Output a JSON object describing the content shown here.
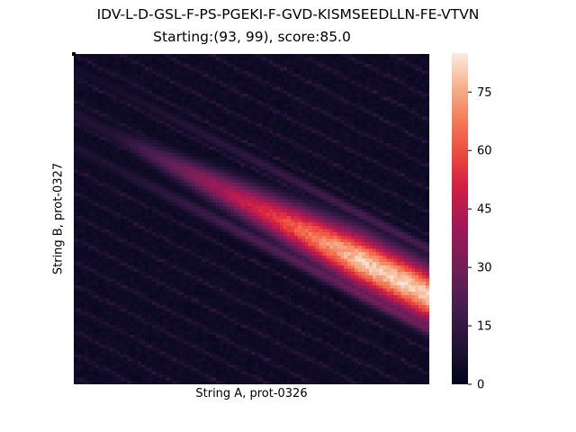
{
  "chart_data": {
    "type": "heatmap",
    "title": "IDV-L-D-GSL-F-PS-PGEKI-F-GVD-KISMSEEDLLN-FE-VTVN",
    "subtitle": "Starting:(93, 99), score:85.0",
    "xlabel": "String A, prot-0326",
    "ylabel": "String B, prot-0327",
    "colormap": "rocket",
    "colorbar": {
      "min": 0,
      "max": 85,
      "ticks": [
        0,
        15,
        30,
        45,
        60,
        75
      ],
      "tick_labels": [
        "0",
        "15",
        "30",
        "45",
        "60",
        "75"
      ]
    },
    "grid": false,
    "description_values": {
      "columns": 100,
      "rows": 100,
      "peak_cell": [
        93,
        99
      ],
      "peak_score": 85.0
    }
  }
}
